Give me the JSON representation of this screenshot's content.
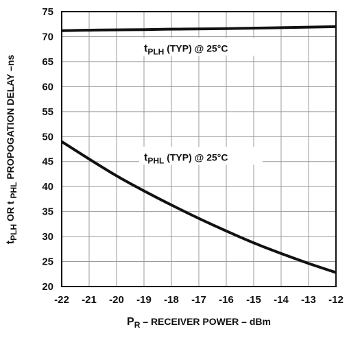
{
  "chart_data": {
    "type": "line",
    "title": "",
    "xlabel": "P_R – RECEIVER POWER – dBm",
    "ylabel": "t_PLH OR t_PHL PROPOGATION DELAY –ns",
    "xlim": [
      -22,
      -12
    ],
    "ylim": [
      20,
      75
    ],
    "x_ticks": [
      -22,
      -21,
      -20,
      -19,
      -18,
      -17,
      -16,
      -15,
      -14,
      -13,
      -12
    ],
    "y_ticks": [
      20,
      25,
      30,
      35,
      40,
      45,
      50,
      55,
      60,
      65,
      70,
      75
    ],
    "grid": true,
    "legend": "none",
    "series": [
      {
        "name": "t_PLH (TYP) @ 25°C",
        "x": [
          -22,
          -21,
          -20,
          -19,
          -18,
          -17,
          -16,
          -15,
          -14,
          -13,
          -12
        ],
        "values": [
          71.2,
          71.3,
          71.35,
          71.4,
          71.5,
          71.55,
          71.6,
          71.7,
          71.8,
          71.9,
          72.0
        ]
      },
      {
        "name": "t_PHL (TYP) @ 25°C",
        "x": [
          -22,
          -21,
          -20,
          -19,
          -18,
          -17,
          -16,
          -15,
          -14,
          -13,
          -12
        ],
        "values": [
          49.0,
          45.5,
          42.1,
          39.1,
          36.3,
          33.6,
          31.1,
          28.7,
          26.6,
          24.6,
          22.8
        ]
      }
    ],
    "annotations": [
      {
        "main": "t",
        "sub": "PLH",
        "rest": " (TYP) @ 25°C",
        "series": 0
      },
      {
        "main": "t",
        "sub": "PHL",
        "rest": " (TYP) @ 25°C",
        "series": 1
      }
    ],
    "axis_text": {
      "xlabel_main": "P",
      "xlabel_sub": "R",
      "xlabel_rest": " – RECEIVER POWER – dBm",
      "ylabel_t1": "t",
      "ylabel_sub1": "PLH",
      "ylabel_mid": " OR t ",
      "ylabel_sub2": "PHL",
      "ylabel_rest": " PROPOGATION DELAY –ns"
    },
    "colors": {
      "line": "#111111",
      "grid": "#9a9a9a",
      "frame": "#111111"
    }
  }
}
